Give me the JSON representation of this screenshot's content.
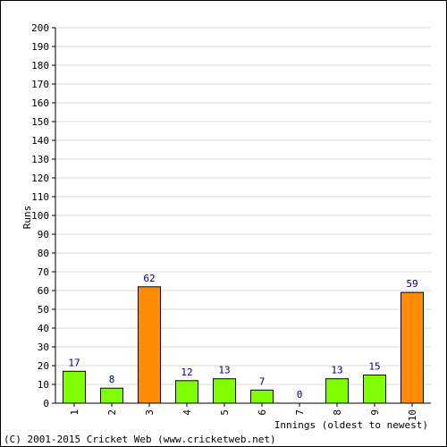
{
  "chart_data": {
    "type": "bar",
    "ylabel": "Runs",
    "xlabel": "Innings (oldest to newest)",
    "ylim": [
      0,
      200
    ],
    "ytick_step": 10,
    "grid": true,
    "categories": [
      "1",
      "2",
      "3",
      "4",
      "5",
      "6",
      "7",
      "8",
      "9",
      "10"
    ],
    "values": [
      17,
      8,
      62,
      12,
      13,
      7,
      0,
      13,
      15,
      59
    ],
    "bar_colors": [
      "#80ff00",
      "#80ff00",
      "#ff8c00",
      "#80ff00",
      "#80ff00",
      "#80ff00",
      "#80ff00",
      "#80ff00",
      "#80ff00",
      "#ff8c00"
    ],
    "data_label_color": "#000080",
    "grid_color": "#d9d9d9"
  },
  "footer": {
    "copyright": "(C) 2001-2015 Cricket Web (www.cricketweb.net)"
  }
}
